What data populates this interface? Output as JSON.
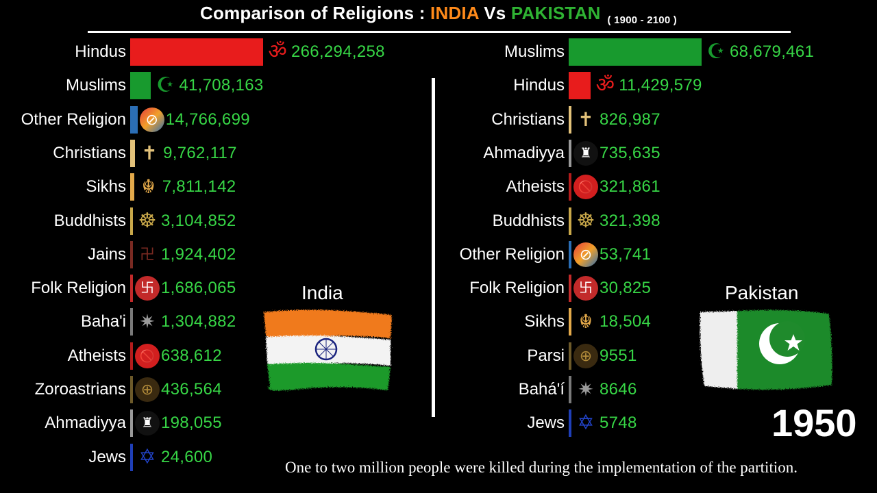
{
  "title": {
    "prefix": "Comparison of Religions : ",
    "india": "INDIA",
    "vs": " Vs ",
    "pakistan": "PAKISTAN",
    "range": "( 1900 - 2100 )"
  },
  "year": "1950",
  "caption": "One to two million people were killed during the implementation of the partition.",
  "flags": {
    "india_label": "India",
    "pakistan_label": "Pakistan"
  },
  "chart_data": [
    {
      "type": "bar",
      "orientation": "horizontal",
      "country": "India",
      "categories": [
        "Hindus",
        "Muslims",
        "Other Religion",
        "Christians",
        "Sikhs",
        "Buddhists",
        "Jains",
        "Folk Religion",
        "Baha'i",
        "Atheists",
        "Zoroastrians",
        "Ahmadiyya",
        "Jews"
      ],
      "values": [
        266294258,
        41708163,
        14766699,
        9762117,
        7811142,
        3104852,
        1924402,
        1686065,
        1304882,
        638612,
        436564,
        198055,
        24600
      ],
      "value_labels": [
        "266,294,258",
        "41,708,163",
        "14,766,699",
        "9,762,117",
        "7,811,142",
        "3,104,852",
        "1,924,402",
        "1,686,065",
        "1,304,882",
        "638,612",
        "436,564",
        "198,055",
        "24,600"
      ],
      "colors": [
        "#e81c1c",
        "#189a2e",
        "#2b6eb5",
        "#e3c27a",
        "#e3a94a",
        "#c9a84a",
        "#7a2a22",
        "#c22a2a",
        "#7a7a7a",
        "#b31c1c",
        "#6d5a2a",
        "#9a9a9a",
        "#1f3fb8"
      ],
      "icons": [
        "om-icon",
        "crescent-star-icon",
        "other-religion-icon",
        "cross-icon",
        "khanda-icon",
        "dharma-wheel-icon",
        "jain-icon",
        "folk-religion-icon",
        "bahai-star-icon",
        "atheist-no-god-icon",
        "faravahar-icon",
        "ahmadiyya-minaret-icon",
        "star-of-david-icon"
      ]
    },
    {
      "type": "bar",
      "orientation": "horizontal",
      "country": "Pakistan",
      "categories": [
        "Muslims",
        "Hindus",
        "Christians",
        "Ahmadiyya",
        "Atheists",
        "Buddhists",
        "Other Religion",
        "Folk Religion",
        "Sikhs",
        "Parsi",
        "Bahá'í",
        "Jews"
      ],
      "values": [
        68679461,
        11429579,
        826987,
        735635,
        321861,
        321398,
        53741,
        30825,
        18504,
        9551,
        8646,
        5748
      ],
      "value_labels": [
        "68,679,461",
        "11,429,579",
        "826,987",
        "735,635",
        "321,861",
        "321,398",
        "53,741",
        "30,825",
        "18,504",
        "9551",
        "8646",
        "5748"
      ],
      "colors": [
        "#189a2e",
        "#e81c1c",
        "#e3c27a",
        "#9a9a9a",
        "#b31c1c",
        "#c9a84a",
        "#2b6eb5",
        "#c22a2a",
        "#e3a94a",
        "#6d5a2a",
        "#7a7a7a",
        "#1f3fb8"
      ],
      "icons": [
        "crescent-star-icon",
        "om-icon",
        "cross-icon",
        "ahmadiyya-minaret-icon",
        "atheist-no-god-icon",
        "dharma-wheel-icon",
        "other-religion-icon",
        "folk-religion-icon",
        "khanda-icon",
        "faravahar-icon",
        "bahai-star-icon",
        "star-of-david-icon"
      ]
    }
  ]
}
